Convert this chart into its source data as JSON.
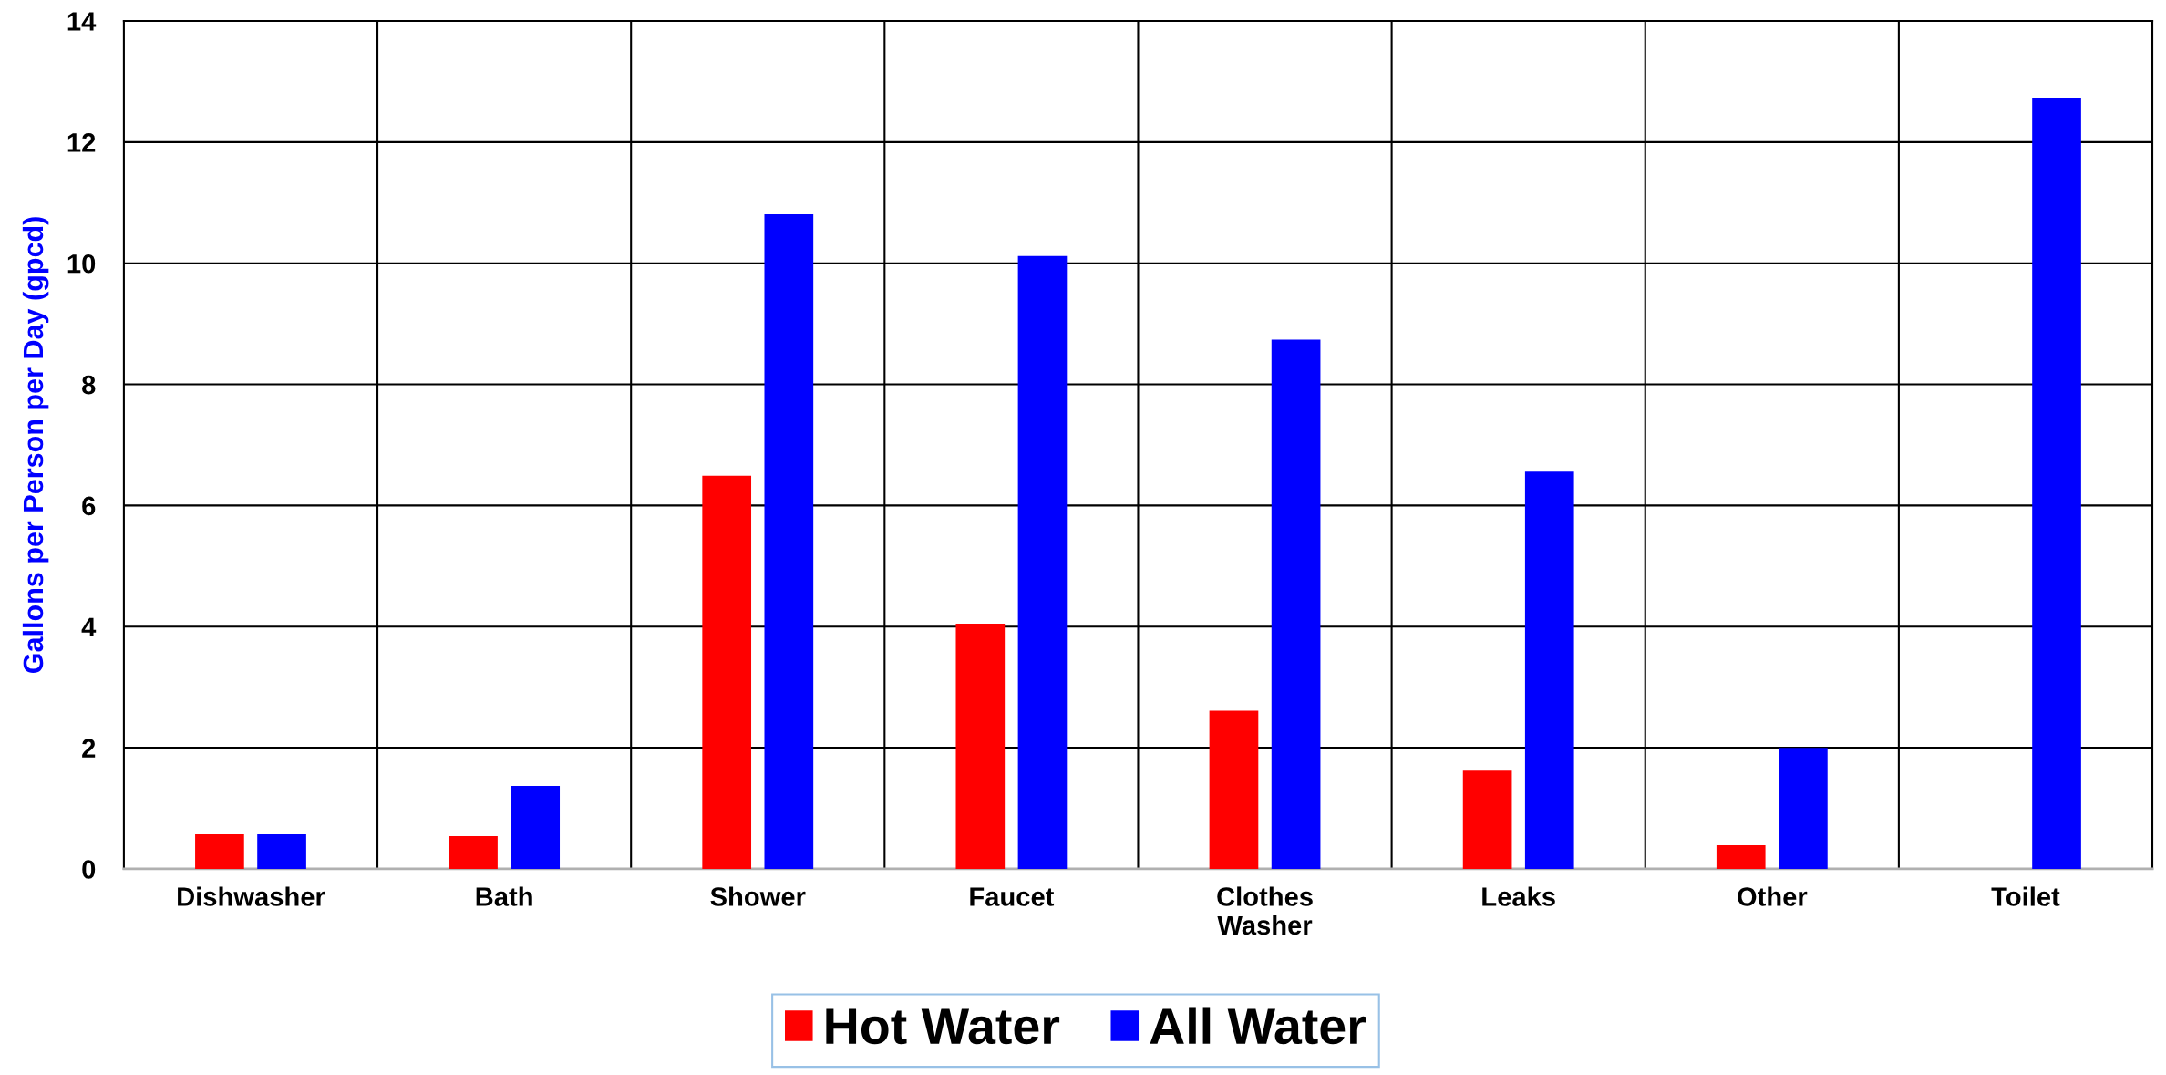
{
  "chart_data": {
    "type": "bar",
    "ylabel": "Gallons per Person per Day (gpcd)",
    "categories": [
      "Dishwasher",
      "Bath",
      "Shower",
      "Faucet",
      "Clothes\nWasher",
      "Leaks",
      "Other",
      "Toilet"
    ],
    "series": [
      {
        "name": "Hot Water",
        "color": "#ff0000",
        "values": [
          0.57,
          0.54,
          6.49,
          4.05,
          2.61,
          1.62,
          0.39,
          null
        ]
      },
      {
        "name": "All Water",
        "color": "#0000ff",
        "values": [
          0.57,
          1.37,
          10.81,
          10.12,
          8.74,
          6.56,
          2.0,
          12.72
        ]
      }
    ],
    "ylim": [
      0,
      14
    ],
    "yticks": [
      0,
      2,
      4,
      6,
      8,
      10,
      12,
      14
    ],
    "grid": true,
    "legend": "bottom"
  }
}
